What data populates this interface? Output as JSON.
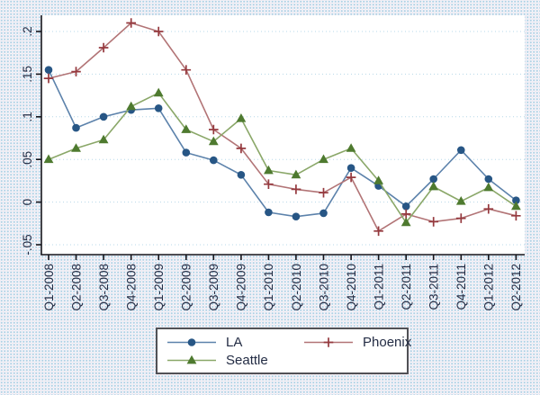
{
  "chart_data": {
    "type": "line",
    "title": "",
    "xlabel": "",
    "ylabel": "",
    "categories": [
      "Q1-2008",
      "Q2-2008",
      "Q3-2008",
      "Q4-2008",
      "Q1-2009",
      "Q2-2009",
      "Q3-2009",
      "Q4-2009",
      "Q1-2010",
      "Q2-2010",
      "Q3-2010",
      "Q4-2010",
      "Q1-2011",
      "Q2-2011",
      "Q3-2011",
      "Q4-2011",
      "Q1-2012",
      "Q2-2012"
    ],
    "series": [
      {
        "name": "LA",
        "marker": "circle",
        "line_color": "#5c82ab",
        "marker_color": "#275685",
        "values": [
          0.155,
          0.087,
          0.1,
          0.108,
          0.11,
          0.058,
          0.049,
          0.032,
          -0.012,
          -0.017,
          -0.013,
          0.04,
          0.019,
          -0.005,
          0.027,
          0.061,
          0.027,
          0.002
        ]
      },
      {
        "name": "Phoenix",
        "marker": "plus",
        "line_color": "#b27476",
        "marker_color": "#95393e",
        "values": [
          0.145,
          0.153,
          0.181,
          0.21,
          0.2,
          0.155,
          0.085,
          0.063,
          0.021,
          0.015,
          0.011,
          0.029,
          -0.034,
          -0.014,
          -0.023,
          -0.019,
          -0.008,
          -0.016
        ]
      },
      {
        "name": "Seattle",
        "marker": "triangle",
        "line_color": "#8aa768",
        "marker_color": "#4e7a2f",
        "values": [
          0.05,
          0.063,
          0.073,
          0.112,
          0.128,
          0.085,
          0.071,
          0.098,
          0.037,
          0.032,
          0.05,
          0.063,
          0.025,
          -0.024,
          0.018,
          0.001,
          0.017,
          -0.005
        ]
      }
    ],
    "yticks": [
      -0.05,
      0,
      0.05,
      0.1,
      0.15,
      0.2
    ],
    "ytick_labels": [
      "-.05",
      "0",
      ".05",
      ".1",
      ".15",
      ".2"
    ],
    "ylim": [
      -0.05,
      0.2
    ],
    "grid": true,
    "gridline_style": "dotted",
    "legend_position": "bottom",
    "legend_columns": 2
  },
  "colors": {
    "grid": "#b7d8e8",
    "axis": "#15151c",
    "text": "#232c44",
    "plot_background": "#ffffff",
    "legend_border": "#515156"
  }
}
